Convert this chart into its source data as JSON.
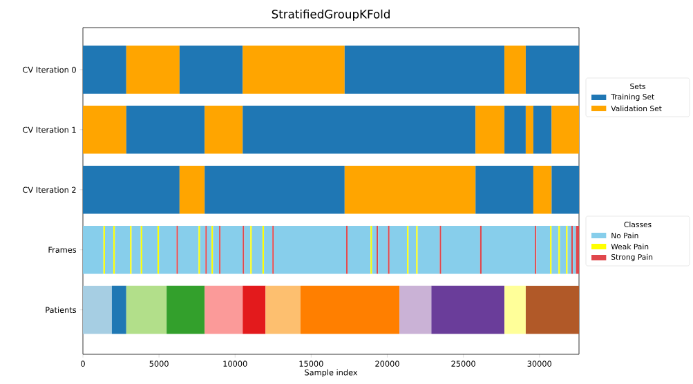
{
  "chart_data": {
    "type": "bar",
    "orientation": "horizontal",
    "title": "StratifiedGroupKFold",
    "xlabel": "Sample index",
    "legend": "right",
    "legend_title": "Sets",
    "annotations": [
      "Classes"
    ],
    "categories": [
      "CV Iteration 0",
      "CV Iteration 1",
      "CV Iteration 2",
      "Frames",
      "Patients"
    ],
    "xlim": [
      0,
      32600
    ],
    "xticks": [
      0,
      5000,
      10000,
      15000,
      20000,
      25000,
      30000
    ],
    "series": [
      {
        "name": "Training Set",
        "color": "#1f77b4",
        "values": [
          2850,
          null,
          null,
          null,
          null
        ],
        "base": [
          0,
          null,
          null,
          null,
          null
        ]
      },
      {
        "name": "Validation Set",
        "color": "#ffa500",
        "values": [
          3500,
          null,
          null,
          null,
          null
        ],
        "base": [
          2850,
          null,
          null,
          null,
          null
        ]
      },
      {
        "color": "#1f77b4",
        "values": [
          4150,
          null,
          null,
          null,
          null
        ],
        "base": [
          6350,
          null,
          null,
          null,
          null
        ]
      },
      {
        "color": "#ffa500",
        "values": [
          6700,
          null,
          null,
          null,
          null
        ],
        "base": [
          10500,
          null,
          null,
          null,
          null
        ]
      },
      {
        "color": "#1f77b4",
        "values": [
          10500,
          null,
          null,
          null,
          null
        ],
        "base": [
          17200,
          null,
          null,
          null,
          null
        ]
      },
      {
        "color": "#ffa500",
        "values": [
          1400,
          null,
          null,
          null,
          null
        ],
        "base": [
          27700,
          null,
          null,
          null,
          null
        ]
      },
      {
        "color": "#1f77b4",
        "values": [
          3500,
          null,
          null,
          null,
          null
        ],
        "base": [
          29100,
          null,
          null,
          null,
          null
        ]
      },
      {
        "color": "#ffa500",
        "values": [
          null,
          2850,
          null,
          null,
          null
        ],
        "base": [
          null,
          0,
          null,
          null,
          null
        ]
      },
      {
        "color": "#1f77b4",
        "values": [
          null,
          5150,
          null,
          null,
          null
        ],
        "base": [
          null,
          2850,
          null,
          null,
          null
        ]
      },
      {
        "color": "#ffa500",
        "values": [
          null,
          2500,
          null,
          null,
          null
        ],
        "base": [
          null,
          8000,
          null,
          null,
          null
        ]
      },
      {
        "color": "#1f77b4",
        "values": [
          null,
          15300,
          null,
          null,
          null
        ],
        "base": [
          null,
          10500,
          null,
          null,
          null
        ]
      },
      {
        "color": "#ffa500",
        "values": [
          null,
          1900,
          null,
          null,
          null
        ],
        "base": [
          null,
          25800,
          null,
          null,
          null
        ]
      },
      {
        "color": "#1f77b4",
        "values": [
          null,
          1400,
          null,
          null,
          null
        ],
        "base": [
          null,
          27700,
          null,
          null,
          null
        ]
      },
      {
        "color": "#ffa500",
        "values": [
          null,
          500,
          null,
          null,
          null
        ],
        "base": [
          null,
          29100,
          null,
          null,
          null
        ]
      },
      {
        "color": "#1f77b4",
        "values": [
          null,
          1200,
          null,
          null,
          null
        ],
        "base": [
          null,
          29600,
          null,
          null,
          null
        ]
      },
      {
        "color": "#ffa500",
        "values": [
          null,
          1800,
          null,
          null,
          null
        ],
        "base": [
          null,
          30800,
          null,
          null,
          null
        ]
      },
      {
        "color": "#1f77b4",
        "values": [
          null,
          null,
          6350,
          null,
          null
        ],
        "base": [
          null,
          null,
          0,
          null,
          null
        ]
      },
      {
        "color": "#ffa500",
        "values": [
          null,
          null,
          1650,
          null,
          null
        ],
        "base": [
          null,
          null,
          6350,
          null,
          null
        ]
      },
      {
        "color": "#1f77b4",
        "values": [
          null,
          null,
          9200,
          null,
          null
        ],
        "base": [
          null,
          null,
          8000,
          null,
          null
        ]
      },
      {
        "color": "#ffa500",
        "values": [
          null,
          null,
          8600,
          null,
          null
        ],
        "base": [
          null,
          null,
          17200,
          null,
          null
        ]
      },
      {
        "color": "#1f77b4",
        "values": [
          null,
          null,
          3800,
          null,
          null
        ],
        "base": [
          null,
          null,
          25800,
          null,
          null
        ]
      },
      {
        "color": "#ffa500",
        "values": [
          null,
          null,
          1200,
          null,
          null
        ],
        "base": [
          null,
          null,
          29600,
          null,
          null
        ]
      },
      {
        "color": "#1f77b4",
        "values": [
          null,
          null,
          1800,
          null,
          null
        ],
        "base": [
          null,
          null,
          30800,
          null,
          null
        ]
      },
      {
        "name": "No Pain",
        "color": "#87ceeb",
        "values": [
          null,
          null,
          null,
          1350,
          null
        ],
        "base": [
          null,
          null,
          null,
          0,
          null
        ]
      },
      {
        "name": "Weak Pain",
        "color": "#ffff00",
        "values": [
          null,
          null,
          null,
          100,
          null
        ],
        "base": [
          null,
          null,
          null,
          1350,
          null
        ]
      },
      {
        "color": "#87ceeb",
        "values": [
          null,
          null,
          null,
          550,
          null
        ],
        "base": [
          null,
          null,
          null,
          1450,
          null
        ]
      },
      {
        "color": "#ffff00",
        "values": [
          null,
          null,
          null,
          100,
          null
        ],
        "base": [
          null,
          null,
          null,
          2000,
          null
        ]
      },
      {
        "color": "#87ceeb",
        "values": [
          null,
          null,
          null,
          1000,
          null
        ],
        "base": [
          null,
          null,
          null,
          2100,
          null
        ]
      },
      {
        "color": "#ffff00",
        "values": [
          null,
          null,
          null,
          100,
          null
        ],
        "base": [
          null,
          null,
          null,
          3100,
          null
        ]
      },
      {
        "color": "#87ceeb",
        "values": [
          null,
          null,
          null,
          600,
          null
        ],
        "base": [
          null,
          null,
          null,
          3200,
          null
        ]
      },
      {
        "color": "#ffff00",
        "values": [
          null,
          null,
          null,
          100,
          null
        ],
        "base": [
          null,
          null,
          null,
          3800,
          null
        ]
      },
      {
        "color": "#87ceeb",
        "values": [
          null,
          null,
          null,
          1000,
          null
        ],
        "base": [
          null,
          null,
          null,
          3900,
          null
        ]
      },
      {
        "color": "#ffff00",
        "values": [
          null,
          null,
          null,
          100,
          null
        ],
        "base": [
          null,
          null,
          null,
          4900,
          null
        ]
      },
      {
        "color": "#87ceeb",
        "values": [
          null,
          null,
          null,
          1150,
          null
        ],
        "base": [
          null,
          null,
          null,
          5000,
          null
        ]
      },
      {
        "name": "Strong Pain",
        "color": "#e0474c",
        "values": [
          null,
          null,
          null,
          100,
          null
        ],
        "base": [
          null,
          null,
          null,
          6150,
          null
        ]
      },
      {
        "color": "#87ceeb",
        "values": [
          null,
          null,
          null,
          1350,
          null
        ],
        "base": [
          null,
          null,
          null,
          6250,
          null
        ]
      },
      {
        "color": "#ffff00",
        "values": [
          null,
          null,
          null,
          100,
          null
        ],
        "base": [
          null,
          null,
          null,
          7600,
          null
        ]
      },
      {
        "color": "#87ceeb",
        "values": [
          null,
          null,
          null,
          350,
          null
        ],
        "base": [
          null,
          null,
          null,
          7700,
          null
        ]
      },
      {
        "color": "#e0474c",
        "values": [
          null,
          null,
          null,
          100,
          null
        ],
        "base": [
          null,
          null,
          null,
          8050,
          null
        ]
      },
      {
        "color": "#87ceeb",
        "values": [
          null,
          null,
          null,
          300,
          null
        ],
        "base": [
          null,
          null,
          null,
          8150,
          null
        ]
      },
      {
        "color": "#ffff00",
        "values": [
          null,
          null,
          null,
          100,
          null
        ],
        "base": [
          null,
          null,
          null,
          8450,
          null
        ]
      },
      {
        "color": "#87ceeb",
        "values": [
          null,
          null,
          null,
          400,
          null
        ],
        "base": [
          null,
          null,
          null,
          8550,
          null
        ]
      },
      {
        "color": "#e0474c",
        "values": [
          null,
          null,
          null,
          100,
          null
        ],
        "base": [
          null,
          null,
          null,
          8950,
          null
        ]
      },
      {
        "color": "#87ceeb",
        "values": [
          null,
          null,
          null,
          1450,
          null
        ],
        "base": [
          null,
          null,
          null,
          9050,
          null
        ]
      },
      {
        "color": "#e0474c",
        "values": [
          null,
          null,
          null,
          100,
          null
        ],
        "base": [
          null,
          null,
          null,
          10500,
          null
        ]
      },
      {
        "color": "#87ceeb",
        "values": [
          null,
          null,
          null,
          400,
          null
        ],
        "base": [
          null,
          null,
          null,
          10600,
          null
        ]
      },
      {
        "color": "#ffff00",
        "values": [
          null,
          null,
          null,
          100,
          null
        ],
        "base": [
          null,
          null,
          null,
          11000,
          null
        ]
      },
      {
        "color": "#87ceeb",
        "values": [
          null,
          null,
          null,
          700,
          null
        ],
        "base": [
          null,
          null,
          null,
          11100,
          null
        ]
      },
      {
        "color": "#ffff00",
        "values": [
          null,
          null,
          null,
          100,
          null
        ],
        "base": [
          null,
          null,
          null,
          11800,
          null
        ]
      },
      {
        "color": "#87ceeb",
        "values": [
          null,
          null,
          null,
          550,
          null
        ],
        "base": [
          null,
          null,
          null,
          11900,
          null
        ]
      },
      {
        "color": "#e0474c",
        "values": [
          null,
          null,
          null,
          100,
          null
        ],
        "base": [
          null,
          null,
          null,
          12450,
          null
        ]
      },
      {
        "color": "#87ceeb",
        "values": [
          null,
          null,
          null,
          4750,
          null
        ],
        "base": [
          null,
          null,
          null,
          12550,
          null
        ]
      },
      {
        "color": "#e0474c",
        "values": [
          null,
          null,
          null,
          100,
          null
        ],
        "base": [
          null,
          null,
          null,
          17300,
          null
        ]
      },
      {
        "color": "#87ceeb",
        "values": [
          null,
          null,
          null,
          1500,
          null
        ],
        "base": [
          null,
          null,
          null,
          17400,
          null
        ]
      },
      {
        "color": "#ffff00",
        "values": [
          null,
          null,
          null,
          100,
          null
        ],
        "base": [
          null,
          null,
          null,
          18900,
          null
        ]
      },
      {
        "color": "#87ceeb",
        "values": [
          null,
          null,
          null,
          300,
          null
        ],
        "base": [
          null,
          null,
          null,
          19000,
          null
        ]
      },
      {
        "color": "#e0474c",
        "values": [
          null,
          null,
          null,
          100,
          null
        ],
        "base": [
          null,
          null,
          null,
          19300,
          null
        ]
      },
      {
        "color": "#87ceeb",
        "values": [
          null,
          null,
          null,
          650,
          null
        ],
        "base": [
          null,
          null,
          null,
          19400,
          null
        ]
      },
      {
        "color": "#e0474c",
        "values": [
          null,
          null,
          null,
          100,
          null
        ],
        "base": [
          null,
          null,
          null,
          20050,
          null
        ]
      },
      {
        "color": "#87ceeb",
        "values": [
          null,
          null,
          null,
          1150,
          null
        ],
        "base": [
          null,
          null,
          null,
          20150,
          null
        ]
      },
      {
        "color": "#ffff00",
        "values": [
          null,
          null,
          null,
          100,
          null
        ],
        "base": [
          null,
          null,
          null,
          21300,
          null
        ]
      },
      {
        "color": "#87ceeb",
        "values": [
          null,
          null,
          null,
          500,
          null
        ],
        "base": [
          null,
          null,
          null,
          21400,
          null
        ]
      },
      {
        "color": "#ffff00",
        "values": [
          null,
          null,
          null,
          100,
          null
        ],
        "base": [
          null,
          null,
          null,
          21900,
          null
        ]
      },
      {
        "color": "#87ceeb",
        "values": [
          null,
          null,
          null,
          1450,
          null
        ],
        "base": [
          null,
          null,
          null,
          22000,
          null
        ]
      },
      {
        "color": "#e0474c",
        "values": [
          null,
          null,
          null,
          100,
          null
        ],
        "base": [
          null,
          null,
          null,
          23450,
          null
        ]
      },
      {
        "color": "#87ceeb",
        "values": [
          null,
          null,
          null,
          2550,
          null
        ],
        "base": [
          null,
          null,
          null,
          23550,
          null
        ]
      },
      {
        "color": "#e0474c",
        "values": [
          null,
          null,
          null,
          100,
          null
        ],
        "base": [
          null,
          null,
          null,
          26100,
          null
        ]
      },
      {
        "color": "#87ceeb",
        "values": [
          null,
          null,
          null,
          3500,
          null
        ],
        "base": [
          null,
          null,
          null,
          26200,
          null
        ]
      },
      {
        "color": "#e0474c",
        "values": [
          null,
          null,
          null,
          100,
          null
        ],
        "base": [
          null,
          null,
          null,
          29700,
          null
        ]
      },
      {
        "color": "#87ceeb",
        "values": [
          null,
          null,
          null,
          900,
          null
        ],
        "base": [
          null,
          null,
          null,
          29800,
          null
        ]
      },
      {
        "color": "#ffff00",
        "values": [
          null,
          null,
          null,
          100,
          null
        ],
        "base": [
          null,
          null,
          null,
          30700,
          null
        ]
      },
      {
        "color": "#87ceeb",
        "values": [
          null,
          null,
          null,
          450,
          null
        ],
        "base": [
          null,
          null,
          null,
          30800,
          null
        ]
      },
      {
        "color": "#ffff00",
        "values": [
          null,
          null,
          null,
          100,
          null
        ],
        "base": [
          null,
          null,
          null,
          31250,
          null
        ]
      },
      {
        "color": "#87ceeb",
        "values": [
          null,
          null,
          null,
          400,
          null
        ],
        "base": [
          null,
          null,
          null,
          31350,
          null
        ]
      },
      {
        "color": "#ffff00",
        "values": [
          null,
          null,
          null,
          100,
          null
        ],
        "base": [
          null,
          null,
          null,
          31750,
          null
        ]
      },
      {
        "color": "#87ceeb",
        "values": [
          null,
          null,
          null,
          250,
          null
        ],
        "base": [
          null,
          null,
          null,
          31850,
          null
        ]
      },
      {
        "color": "#e0474c",
        "values": [
          null,
          null,
          null,
          100,
          null
        ],
        "base": [
          null,
          null,
          null,
          32100,
          null
        ]
      },
      {
        "color": "#87ceeb",
        "values": [
          null,
          null,
          null,
          200,
          null
        ],
        "base": [
          null,
          null,
          null,
          32200,
          null
        ]
      },
      {
        "color": "#e0474c",
        "values": [
          null,
          null,
          null,
          200,
          null
        ],
        "base": [
          null,
          null,
          null,
          32400,
          null
        ]
      },
      {
        "color": "#a6cee3",
        "values": [
          null,
          null,
          null,
          null,
          1900
        ],
        "base": [
          null,
          null,
          null,
          null,
          0
        ]
      },
      {
        "color": "#1f78b4",
        "values": [
          null,
          null,
          null,
          null,
          950
        ],
        "base": [
          null,
          null,
          null,
          null,
          1900
        ]
      },
      {
        "color": "#b2df8a",
        "values": [
          null,
          null,
          null,
          null,
          2650
        ],
        "base": [
          null,
          null,
          null,
          null,
          2850
        ]
      },
      {
        "color": "#33a02c",
        "values": [
          null,
          null,
          null,
          null,
          2500
        ],
        "base": [
          null,
          null,
          null,
          null,
          5500
        ]
      },
      {
        "color": "#fb9a99",
        "values": [
          null,
          null,
          null,
          null,
          2500
        ],
        "base": [
          null,
          null,
          null,
          null,
          8000
        ]
      },
      {
        "color": "#e31a1c",
        "values": [
          null,
          null,
          null,
          null,
          1500
        ],
        "base": [
          null,
          null,
          null,
          null,
          10500
        ]
      },
      {
        "color": "#fdbf6f",
        "values": [
          null,
          null,
          null,
          null,
          2300
        ],
        "base": [
          null,
          null,
          null,
          null,
          12000
        ]
      },
      {
        "color": "#ff7f00",
        "values": [
          null,
          null,
          null,
          null,
          6500
        ],
        "base": [
          null,
          null,
          null,
          null,
          14300
        ]
      },
      {
        "color": "#cab2d6",
        "values": [
          null,
          null,
          null,
          null,
          2100
        ],
        "base": [
          null,
          null,
          null,
          null,
          20800
        ]
      },
      {
        "color": "#6a3d9a",
        "values": [
          null,
          null,
          null,
          null,
          4800
        ],
        "base": [
          null,
          null,
          null,
          null,
          22900
        ]
      },
      {
        "color": "#ffff99",
        "values": [
          null,
          null,
          null,
          null,
          1400
        ],
        "base": [
          null,
          null,
          null,
          null,
          27700
        ]
      },
      {
        "color": "#b15928",
        "values": [
          null,
          null,
          null,
          null,
          3500
        ],
        "base": [
          null,
          null,
          null,
          null,
          29100
        ]
      }
    ]
  }
}
